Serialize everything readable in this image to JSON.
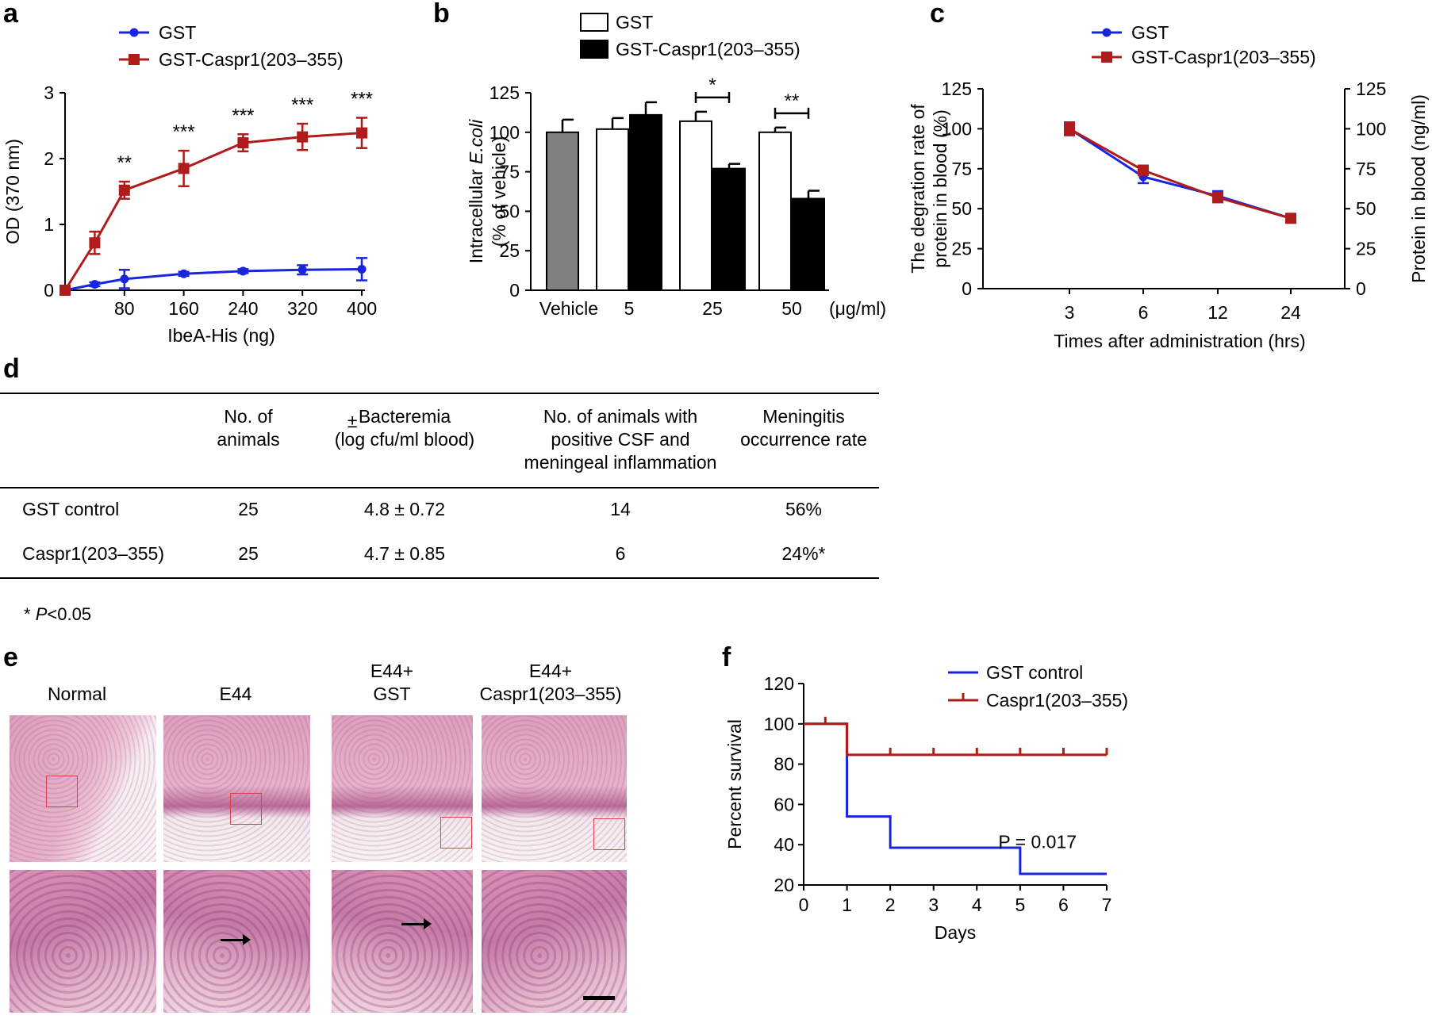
{
  "panel_labels": {
    "a": "a",
    "b": "b",
    "c": "c",
    "d": "d",
    "e": "e",
    "f": "f"
  },
  "chart_data": [
    {
      "id": "a",
      "type": "line",
      "xlabel": "IbeA-His (ng)",
      "ylabel": "OD (370 nm)",
      "xlim": [
        0,
        400
      ],
      "ylim": [
        0,
        3
      ],
      "xticks": [
        80,
        160,
        240,
        320,
        400
      ],
      "xtick_labels": [
        "80",
        "160",
        "240",
        "320",
        "400"
      ],
      "yticks": [
        0,
        1,
        2,
        3
      ],
      "ytick_labels": [
        "0",
        "1",
        "2",
        "3"
      ],
      "legend_position": "top",
      "series": [
        {
          "name": "GST",
          "color": "#1a24e0",
          "marker": "circle",
          "x": [
            0,
            40,
            80,
            160,
            240,
            320,
            400
          ],
          "y": [
            0,
            0.09,
            0.17,
            0.25,
            0.29,
            0.31,
            0.32
          ],
          "err": [
            0.03,
            0.03,
            0.14,
            0.03,
            0.03,
            0.07,
            0.17
          ]
        },
        {
          "name": "GST-Caspr1(203–355)",
          "color": "#b01b1b",
          "marker": "square",
          "x": [
            0,
            40,
            80,
            160,
            240,
            320,
            400
          ],
          "y": [
            0,
            0.72,
            1.52,
            1.85,
            2.24,
            2.33,
            2.39
          ],
          "err": [
            0.03,
            0.17,
            0.13,
            0.27,
            0.13,
            0.2,
            0.23
          ]
        }
      ],
      "annotations": [
        {
          "x": 80,
          "text": "**"
        },
        {
          "x": 160,
          "text": "***"
        },
        {
          "x": 240,
          "text": "***"
        },
        {
          "x": 320,
          "text": "***"
        },
        {
          "x": 400,
          "text": "***"
        }
      ]
    },
    {
      "id": "b",
      "type": "bar",
      "ylabel_lines": [
        "Intracellular E.coli",
        "(% of vehicle)"
      ],
      "ylabel_italic": "E.coli",
      "ylim": [
        0,
        125
      ],
      "yticks": [
        0,
        25,
        50,
        75,
        100,
        125
      ],
      "ytick_labels": [
        "0",
        "25",
        "50",
        "75",
        "100",
        "125"
      ],
      "categories": [
        "Vehicle",
        "5",
        "25",
        "50"
      ],
      "x_unit": "(μg/ml)",
      "legend_position": "top",
      "series": [
        {
          "name": "Vehicle",
          "color": "#808080",
          "values": [
            100,
            null,
            null,
            null
          ],
          "err": [
            8,
            null,
            null,
            null
          ]
        },
        {
          "name": "GST",
          "color": "#ffffff",
          "values": [
            null,
            102,
            107,
            100
          ],
          "err": [
            null,
            7,
            6,
            3
          ]
        },
        {
          "name": "GST-Caspr1(203–355)",
          "color": "#000000",
          "values": [
            null,
            111,
            77,
            58
          ],
          "err": [
            null,
            8,
            3,
            5
          ]
        }
      ],
      "significance": [
        {
          "category": "25",
          "text": "*"
        },
        {
          "category": "50",
          "text": "**"
        }
      ]
    },
    {
      "id": "c",
      "type": "line",
      "xlabel": "Times after administration (hrs)",
      "ylabel_left_lines": [
        "The degration rate of",
        "protein in blood (%)"
      ],
      "ylabel_right": "Protein in blood (ng/ml)",
      "categories": [
        "3",
        "6",
        "12",
        "24"
      ],
      "ylim": [
        0,
        125
      ],
      "yticks": [
        0,
        25,
        50,
        75,
        100,
        125
      ],
      "ytick_labels": [
        "0",
        "25",
        "50",
        "75",
        "100",
        "125"
      ],
      "legend_position": "top",
      "series": [
        {
          "name": "GST",
          "color": "#1a24e0",
          "marker": "circle",
          "values": [
            100,
            70,
            58,
            44
          ],
          "err": [
            4,
            4,
            3,
            2
          ]
        },
        {
          "name": "GST-Caspr1(203–355)",
          "color": "#b01b1b",
          "marker": "square",
          "values": [
            100,
            74,
            57,
            44
          ],
          "err": [
            4,
            3,
            3,
            2
          ]
        }
      ]
    },
    {
      "id": "f",
      "type": "line",
      "step": true,
      "xlabel": "Days",
      "ylabel": "Percent survival",
      "xlim": [
        0,
        7
      ],
      "ylim": [
        20,
        120
      ],
      "xticks": [
        0,
        1,
        2,
        3,
        4,
        5,
        6,
        7
      ],
      "xtick_labels": [
        "0",
        "1",
        "2",
        "3",
        "4",
        "5",
        "6",
        "7"
      ],
      "yticks": [
        20,
        40,
        60,
        80,
        100,
        120
      ],
      "ytick_labels": [
        "20",
        "40",
        "60",
        "80",
        "100",
        "120"
      ],
      "legend_position": "top-right",
      "p_value_text": "P = 0.017",
      "series": [
        {
          "name": "GST control",
          "color": "#1a24e0",
          "steps": [
            [
              0,
              100
            ],
            [
              1,
              100
            ],
            [
              1,
              54
            ],
            [
              2,
              54
            ],
            [
              2,
              38.5
            ],
            [
              5,
              38.5
            ],
            [
              5,
              25.5
            ],
            [
              7,
              25.5
            ]
          ]
        },
        {
          "name": "Caspr1(203–355)",
          "color": "#b01b1b",
          "steps": [
            [
              0,
              100
            ],
            [
              1,
              100
            ],
            [
              1,
              84.6
            ],
            [
              7,
              84.6
            ]
          ],
          "censor_x": [
            0.5,
            2,
            3,
            4,
            5,
            6,
            7
          ]
        }
      ]
    }
  ],
  "table_d": {
    "headers": [
      "",
      "No. of\nanimals",
      "Bacteremia\n(log cfu/ml blood)",
      "No. of animals with\npositive CSF and\nmeningeal inflammation",
      "Meningitis\noccurrence rate"
    ],
    "header_mark": "±",
    "rows": [
      [
        "GST control",
        "25",
        "4.8 ± 0.72",
        "14",
        "56%"
      ],
      [
        "Caspr1(203–355)",
        "25",
        "4.7 ± 0.85",
        "6",
        "24%*"
      ]
    ],
    "footnote_star": "*",
    "footnote_italic": "P",
    "footnote_rest": "<0.05"
  },
  "panel_e": {
    "labels": [
      "Normal",
      "E44",
      "E44+\nGST",
      "E44+\nCaspr1(203–355)"
    ]
  }
}
